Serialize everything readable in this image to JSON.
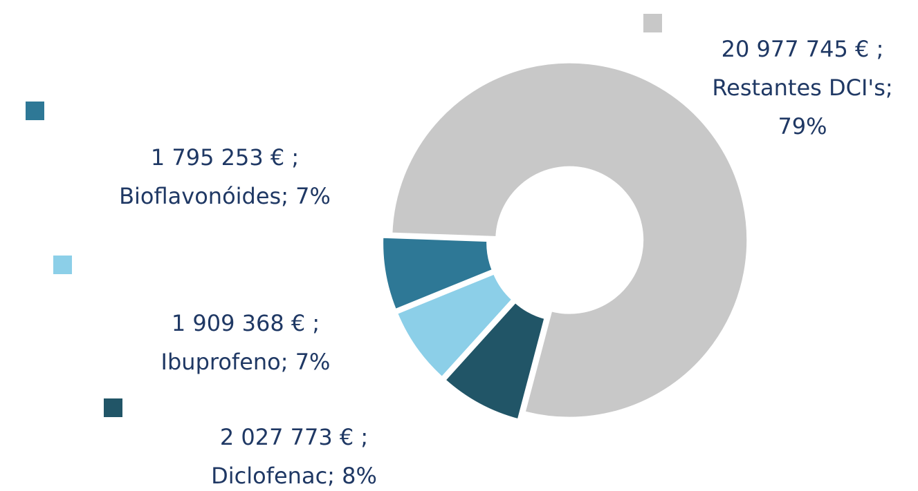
{
  "chart_data": {
    "type": "donut",
    "values": [
      20977745,
      1795253,
      1909368,
      2027773
    ],
    "value_labels": [
      "20 977 745 € ;",
      "1 795 253 € ;",
      "1 909 368 € ;",
      "2 027 773 € ;"
    ],
    "label_lines": [
      [
        "Restantes DCI's;",
        "79%"
      ],
      [
        "Bioflavonóides; 7%"
      ],
      [
        "Ibuprofeno; 7%"
      ],
      [
        "Diclofenac; 8%"
      ]
    ],
    "colors": [
      "#c8c8c8",
      "#2e7896",
      "#8ccfe8",
      "#215567"
    ]
  }
}
